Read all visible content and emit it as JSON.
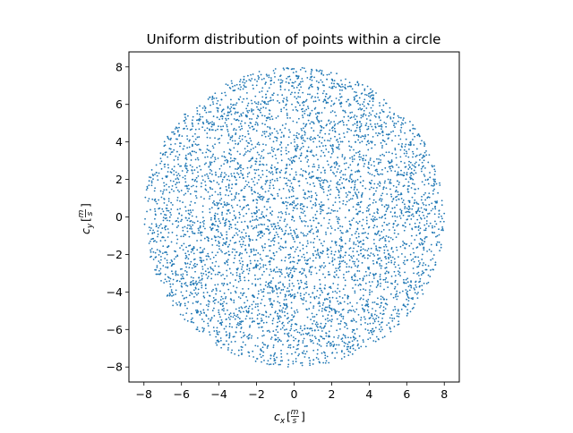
{
  "chart_data": {
    "type": "scatter",
    "title": "Uniform distribution of points within a circle",
    "xlabel": {
      "symbol": "c",
      "subscript": "x",
      "unit_num": "m",
      "unit_den": "s"
    },
    "ylabel": {
      "symbol": "c",
      "subscript": "y",
      "unit_num": "m",
      "unit_den": "s"
    },
    "xlim": [
      -8.8,
      8.8
    ],
    "ylim": [
      -8.8,
      8.8
    ],
    "xticks": [
      -8,
      -6,
      -4,
      -2,
      0,
      2,
      4,
      6,
      8
    ],
    "yticks": [
      -8,
      -6,
      -4,
      -2,
      0,
      2,
      4,
      6,
      8
    ],
    "tick_labels": [
      "−8",
      "−6",
      "−4",
      "−2",
      "0",
      "2",
      "4",
      "6",
      "8"
    ],
    "grid": false,
    "marker_color": "#1f77b4",
    "circle_radius": 8,
    "point_count": 5000,
    "distribution": "uniform within circle"
  }
}
